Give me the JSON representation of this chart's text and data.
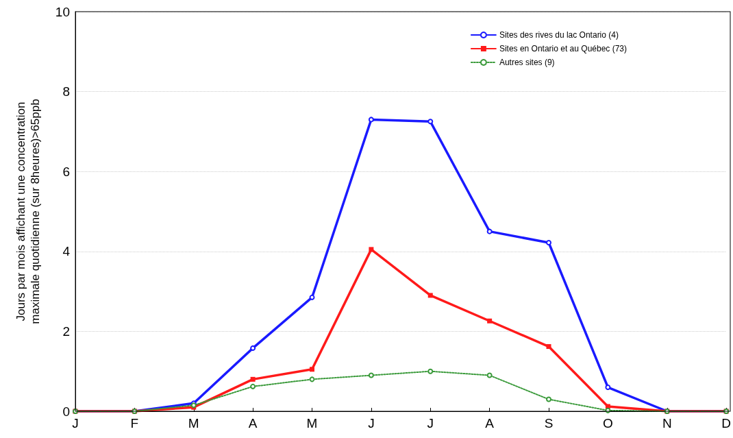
{
  "chart_data": {
    "type": "line",
    "ylabel": "Jours par mois affichant une concentration\nmaximale quotidienne (sur 8heures)>65ppb",
    "categories": [
      "J",
      "F",
      "M",
      "A",
      "M",
      "J",
      "J",
      "A",
      "S",
      "O",
      "N",
      "D"
    ],
    "series": [
      {
        "name": "Sites des rives du lac Ontario (4)",
        "color": "#1a1aff",
        "marker": "circle",
        "line_style": "solid",
        "values": [
          0,
          0,
          0.2,
          1.58,
          2.85,
          7.3,
          7.25,
          4.5,
          4.22,
          0.6,
          0,
          0
        ]
      },
      {
        "name": "Sites en Ontario et au Québec (73)",
        "color": "#ff1a1a",
        "marker": "square",
        "line_style": "solid",
        "values": [
          0,
          0,
          0.1,
          0.8,
          1.05,
          4.05,
          2.9,
          2.26,
          1.62,
          0.12,
          0,
          0
        ]
      },
      {
        "name": "Autres sites (9)",
        "color": "#3a9a3a",
        "marker": "circle",
        "line_style": "dotted",
        "values": [
          0,
          0,
          0.15,
          0.62,
          0.8,
          0.9,
          1.0,
          0.9,
          0.3,
          0.02,
          0,
          0
        ]
      }
    ],
    "ylim": [
      0,
      10
    ],
    "yticks": [
      0,
      2,
      4,
      6,
      8,
      10
    ],
    "grid": "y",
    "legend": "top right"
  }
}
